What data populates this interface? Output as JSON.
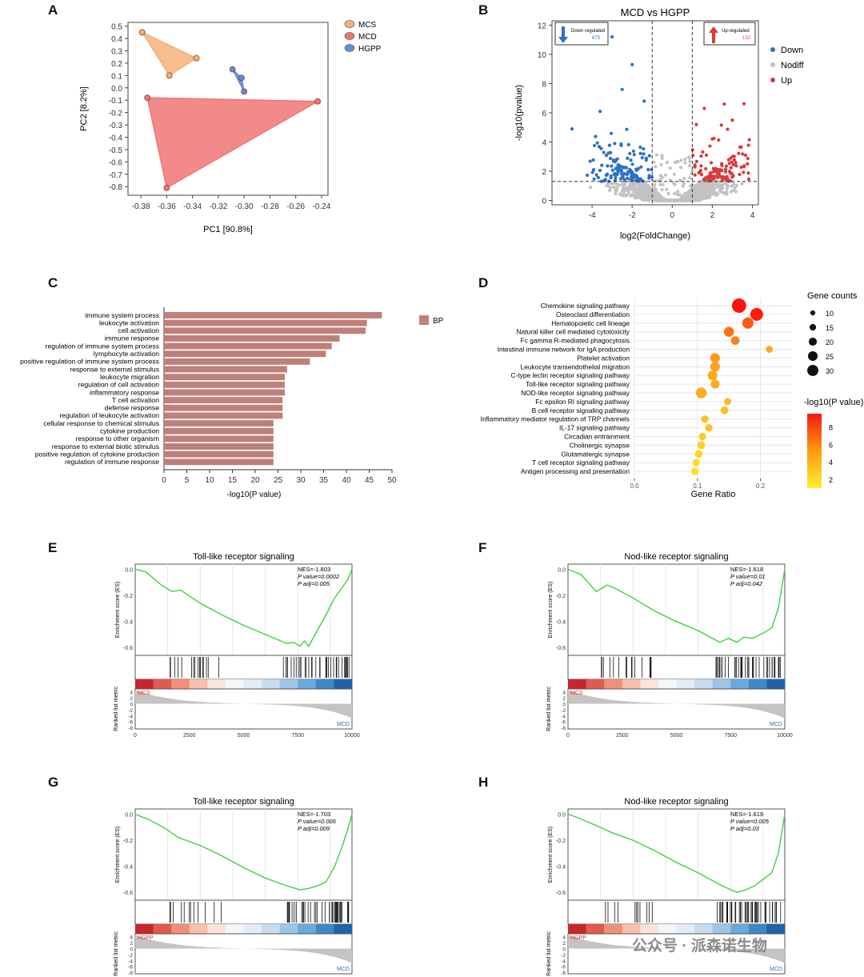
{
  "figure_labels": [
    "A",
    "B",
    "C",
    "D",
    "E",
    "F",
    "G",
    "H"
  ],
  "watermark": "公众号 · 派森诺生物",
  "chart_data": [
    {
      "id": "A",
      "type": "scatter",
      "title": "",
      "xlabel": "PC1 [90.8%]",
      "ylabel": "PC2 [8.2%]",
      "xlim": [
        -0.39,
        -0.235
      ],
      "ylim": [
        -0.87,
        0.53
      ],
      "xticks": [
        -0.38,
        -0.36,
        -0.34,
        -0.32,
        -0.3,
        -0.28,
        -0.26,
        -0.24
      ],
      "xtick_labels": [
        "-0.38",
        "-0.36",
        "-0.34",
        "-0.32",
        "-0.30",
        "-0.28",
        "-0.26",
        "-0.24"
      ],
      "yticks": [
        0.5,
        0.4,
        0.3,
        0.2,
        0.1,
        0.0,
        -0.1,
        -0.2,
        -0.3,
        -0.4,
        -0.5,
        -0.6,
        -0.7,
        -0.8
      ],
      "ytick_labels": [
        "0.5",
        "0.4",
        "0.3",
        "0.2",
        "0.1",
        "0.0",
        "-0.1",
        "-0.2",
        "-0.3",
        "-0.4",
        "-0.5",
        "-0.6",
        "-0.7",
        "-0.8"
      ],
      "legend": [
        "MCS",
        "MCD",
        "HGPP"
      ],
      "series": [
        {
          "name": "MCS",
          "color": "#f4b27a",
          "points": [
            [
              -0.379,
              0.45
            ],
            [
              -0.337,
              0.24
            ],
            [
              -0.358,
              0.1
            ]
          ]
        },
        {
          "name": "MCD",
          "color": "#f07575",
          "points": [
            [
              -0.375,
              -0.08
            ],
            [
              -0.243,
              -0.11
            ],
            [
              -0.36,
              -0.81
            ]
          ]
        },
        {
          "name": "HGPP",
          "color": "#5b8fd8",
          "points": [
            [
              -0.309,
              0.15
            ],
            [
              -0.302,
              0.08
            ],
            [
              -0.3,
              -0.03
            ]
          ]
        }
      ]
    },
    {
      "id": "B",
      "type": "scatter",
      "title": "MCD vs HGPP",
      "xlabel": "log2(FoldChange)",
      "ylabel": "-log10(pvalue)",
      "xlim": [
        -6,
        4.3
      ],
      "ylim": [
        -0.3,
        12.3
      ],
      "xticks": [
        -4,
        -2,
        0,
        2,
        4
      ],
      "xtick_labels": [
        "-4",
        "-2",
        "0",
        "2",
        "4"
      ],
      "yticks": [
        0,
        2,
        4,
        6,
        8,
        10,
        12
      ],
      "ytick_labels": [
        "0",
        "2",
        "4",
        "6",
        "8",
        "10",
        "12"
      ],
      "fc_threshold": [
        -1,
        1
      ],
      "p_threshold": 1.3,
      "legend": [
        "Down",
        "Nodiff",
        "Up"
      ],
      "colors": {
        "Down": "#2a70c8",
        "Nodiff": "#c2c2c2",
        "Up": "#d83a3a"
      },
      "down_box": {
        "label": "Down regulated",
        "count": "673"
      },
      "up_box": {
        "label": "Up-regulated",
        "count": "132"
      }
    },
    {
      "id": "C",
      "type": "bar",
      "xlabel": "-log10(P value)",
      "legend": [
        "BP"
      ],
      "color": "#c07f79",
      "xlim": [
        0,
        50
      ],
      "xticks": [
        0,
        5,
        10,
        15,
        20,
        25,
        30,
        35,
        40,
        45,
        50
      ],
      "xtick_labels": [
        "0",
        "5",
        "10",
        "15",
        "20",
        "25",
        "30",
        "35",
        "40",
        "45",
        "50"
      ],
      "categories": [
        "immune system process",
        "leukocyte activation",
        "cell activation",
        "immune response",
        "regulation of immune system process",
        "lymphocyte activation",
        "positive regulation of immune system process",
        "response to external stimulus",
        "leukocyte migration",
        "regulation of cell activation",
        "inflammatory response",
        "T cell activation",
        "defense response",
        "regulation of leukocyte activation",
        "cellular response to chemical stimulus",
        "cytokine production",
        "response to other organism",
        "response to external biotic stimulus",
        "positive regulation of cytokine production",
        "regulation of immune response"
      ],
      "values": [
        47.8,
        44.5,
        44.2,
        38.5,
        36.8,
        35.5,
        32.0,
        27.0,
        26.5,
        26.5,
        26.5,
        26.0,
        26.0,
        26.0,
        24.0,
        24.0,
        24.0,
        24.0,
        24.0,
        24.0
      ]
    },
    {
      "id": "D",
      "type": "scatter",
      "xlabel": "Gene Ratio",
      "xlim": [
        0.0,
        0.25
      ],
      "xticks": [
        0.0,
        0.1,
        0.2
      ],
      "xtick_labels": [
        "0.0",
        "0.1",
        "0.2"
      ],
      "size_legend_title": "Gene counts",
      "size_legend": [
        10,
        15,
        20,
        25,
        30
      ],
      "color_legend_title": "-log10(P value)",
      "color_legend_ticks": [
        8,
        6,
        4,
        2
      ],
      "color_range": [
        1,
        9.5
      ],
      "categories": [
        "Chemokine signaling pathway",
        "Osteoclast differentiation",
        "Hematopoietic cell lineage",
        "Natural killer cell mediated cytotoxicity",
        "Fc gamma R-mediated phagocytosis",
        "Intestinal immune network for IgA production",
        "Platelet activation",
        "Leukocyte transendothelial migration",
        "C-type lectin receptor signaling pathway",
        "Toll-like receptor signaling pathway",
        "NOD-like receptor signaling pathway",
        "Fc epsilon RI signaling pathway",
        "B cell receptor signaling pathway",
        "Inflammatory mediator regulation of TRP channels",
        "IL-17 signaling pathway",
        "Circadian entrainment",
        "Cholinergic synapse",
        "Glutamatergic synapse",
        "T cell receptor signaling pathway",
        "Antigen processing and presentation"
      ],
      "gene_ratio": [
        0.166,
        0.194,
        0.18,
        0.15,
        0.16,
        0.214,
        0.128,
        0.128,
        0.124,
        0.128,
        0.106,
        0.148,
        0.143,
        0.112,
        0.118,
        0.108,
        0.106,
        0.102,
        0.098,
        0.096
      ],
      "gene_counts": [
        31,
        27,
        23,
        20,
        16,
        12,
        19,
        19,
        19,
        17,
        22,
        12,
        14,
        13,
        13,
        13,
        14,
        14,
        13,
        13
      ],
      "neg_log10_p": [
        9.4,
        9.0,
        6.6,
        5.7,
        5.2,
        3.6,
        4.2,
        3.9,
        3.6,
        3.4,
        3.4,
        3.0,
        2.8,
        2.7,
        2.6,
        2.3,
        2.1,
        1.9,
        1.7,
        1.5
      ]
    },
    {
      "id": "E",
      "type": "line",
      "title": "Toll-like receptor signaling",
      "nes": "NES=-1.803",
      "pvalue": "P value=0.0002",
      "padj": "P adj=0.005",
      "ylabel": "Enrichment score (ES)",
      "ylabel2": "Ranked list metric",
      "low_label": "MCS",
      "high_label": "MCD",
      "xlim": [
        0,
        10000
      ],
      "xticks": [
        0,
        2500,
        5000,
        7500,
        10000
      ],
      "xtick_labels": [
        "0",
        "2500",
        "5000",
        "7500",
        "10000"
      ],
      "yticks": [
        0.0,
        -0.2,
        -0.4,
        -0.6
      ],
      "ytick_labels": [
        "0.0",
        "-0.2",
        "-0.4",
        "-0.6"
      ],
      "ylim": [
        -0.66,
        0.04
      ],
      "metric_yticks": [
        4,
        2,
        0,
        -2,
        -4,
        -6,
        -8
      ],
      "x": [
        0,
        500,
        1200,
        1700,
        2100,
        3000,
        4000,
        5000,
        6000,
        7000,
        7300,
        7600,
        7800,
        8000,
        8300,
        8800,
        9200,
        9500,
        9800,
        10000
      ],
      "y": [
        0.0,
        -0.02,
        -0.12,
        -0.17,
        -0.16,
        -0.26,
        -0.35,
        -0.43,
        -0.5,
        -0.57,
        -0.56,
        -0.59,
        -0.55,
        -0.59,
        -0.5,
        -0.35,
        -0.22,
        -0.15,
        -0.08,
        0.0
      ]
    },
    {
      "id": "F",
      "type": "line",
      "title": "Nod-like receptor signaling",
      "nes": "NES=-1.618",
      "pvalue": "P value=0.01",
      "padj": "P adj=0.042",
      "ylabel": "Enrichment score (ES)",
      "ylabel2": "Ranked list metric",
      "low_label": "MCS",
      "high_label": "MCD",
      "xlim": [
        0,
        10000
      ],
      "xticks": [
        0,
        2500,
        5000,
        7500,
        10000
      ],
      "xtick_labels": [
        "0",
        "2500",
        "5000",
        "7500",
        "10000"
      ],
      "yticks": [
        0.0,
        -0.2,
        -0.4,
        -0.6
      ],
      "ytick_labels": [
        "0.0",
        "-0.2",
        "-0.4",
        "-0.6"
      ],
      "ylim": [
        -0.66,
        0.04
      ],
      "metric_yticks": [
        4,
        2,
        0,
        -2,
        -4,
        -6,
        -8
      ],
      "x": [
        0,
        600,
        1300,
        1800,
        2100,
        3000,
        4000,
        5000,
        6000,
        7000,
        7400,
        7800,
        8100,
        8500,
        9000,
        9400,
        9700,
        10000
      ],
      "y": [
        0.0,
        -0.04,
        -0.17,
        -0.12,
        -0.14,
        -0.22,
        -0.32,
        -0.4,
        -0.47,
        -0.56,
        -0.53,
        -0.56,
        -0.52,
        -0.53,
        -0.49,
        -0.45,
        -0.3,
        0.0
      ]
    },
    {
      "id": "G",
      "type": "line",
      "title": "Toll-like receptor signaling",
      "nes": "NES=-1.703",
      "pvalue": "P value=0.006",
      "padj": "P adj=0.009",
      "ylabel": "Enrichment score (ES)",
      "ylabel2": "Ranked list metric",
      "low_label": "HGPP",
      "high_label": "MCD",
      "xlim": [
        0,
        10000
      ],
      "xticks": [
        0,
        2500,
        5000,
        7500,
        10000
      ],
      "xtick_labels": [
        "0",
        "2500",
        "5000",
        "7500",
        "10000"
      ],
      "yticks": [
        0.0,
        -0.2,
        -0.4,
        -0.6
      ],
      "ytick_labels": [
        "0.0",
        "-0.2",
        "-0.4",
        "-0.6"
      ],
      "ylim": [
        -0.66,
        0.04
      ],
      "metric_yticks": [
        4,
        2,
        0,
        -2,
        -4,
        -6,
        -8
      ],
      "x": [
        0,
        600,
        1300,
        2000,
        3000,
        4000,
        5000,
        6000,
        7000,
        7600,
        8000,
        8400,
        8800,
        9200,
        9500,
        9800,
        10000
      ],
      "y": [
        0.0,
        -0.04,
        -0.1,
        -0.18,
        -0.24,
        -0.32,
        -0.41,
        -0.49,
        -0.55,
        -0.58,
        -0.57,
        -0.55,
        -0.52,
        -0.4,
        -0.27,
        -0.12,
        0.0
      ]
    },
    {
      "id": "H",
      "type": "line",
      "title": "Nod-like receptor signaling",
      "nes": "NES=-1.619",
      "pvalue": "P value=0.005",
      "padj": "P adj=0.03",
      "ylabel": "Enrichment score (ES)",
      "ylabel2": "Ranked list metric",
      "low_label": "HGPP",
      "high_label": "MCD",
      "xlim": [
        0,
        10000
      ],
      "xticks": [
        0,
        2500,
        5000,
        7500,
        10000
      ],
      "xtick_labels": [
        "0",
        "2500",
        "5000",
        "7500",
        "10000"
      ],
      "yticks": [
        0.0,
        -0.2,
        -0.4,
        -0.6
      ],
      "ytick_labels": [
        "0.0",
        "-0.2",
        "-0.4",
        "-0.6"
      ],
      "ylim": [
        -0.66,
        0.04
      ],
      "metric_yticks": [
        4,
        2,
        0,
        -2,
        -4,
        -6,
        -8
      ],
      "x": [
        0,
        500,
        1200,
        2000,
        3000,
        4000,
        5000,
        6000,
        7000,
        7500,
        7800,
        8200,
        8600,
        9000,
        9400,
        9700,
        10000
      ],
      "y": [
        0.0,
        -0.03,
        -0.08,
        -0.14,
        -0.2,
        -0.28,
        -0.37,
        -0.45,
        -0.54,
        -0.58,
        -0.6,
        -0.58,
        -0.55,
        -0.5,
        -0.45,
        -0.3,
        0.0
      ]
    }
  ]
}
